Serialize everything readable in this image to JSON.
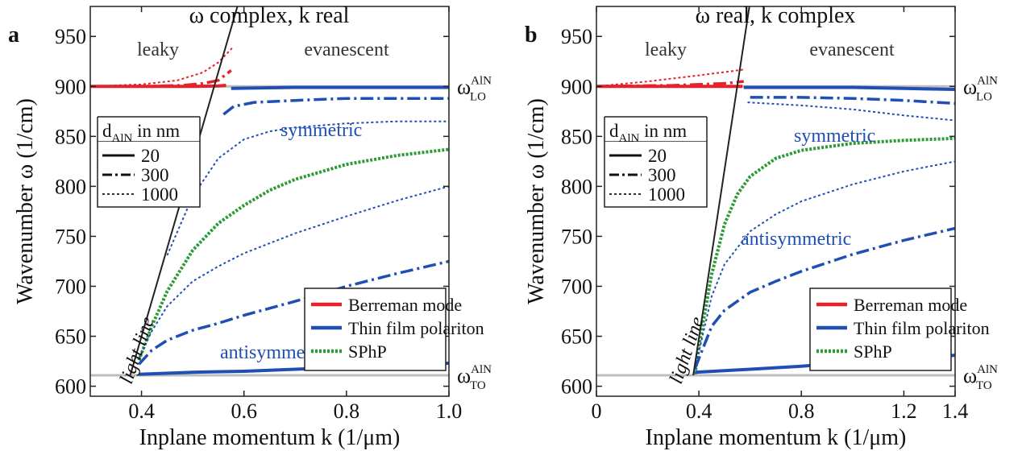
{
  "chart_data": [
    {
      "panel_label": "a",
      "type": "line",
      "title": "ω complex, k real",
      "xlabel": "Inplane momentum k (1/μm)",
      "ylabel": "Wavenumber ω  (1/cm)",
      "xlim": [
        0.3,
        1.0
      ],
      "ylim": [
        590,
        980
      ],
      "xticks": [
        0.4,
        0.6,
        0.8,
        1.0
      ],
      "xtick_labels": [
        "0.4",
        "0.6",
        "0.8",
        "1.0"
      ],
      "yticks": [
        600,
        650,
        700,
        750,
        800,
        850,
        900,
        950
      ],
      "ytick_labels": [
        "600",
        "650",
        "700",
        "750",
        "800",
        "850",
        "900",
        "950"
      ],
      "region_labels": {
        "left": "leaky",
        "right": "evanescent"
      },
      "annotations": {
        "symmetric": "symmetric",
        "antisymmetric": "antisymmetric",
        "light_line": "light line"
      },
      "reference_lines": [
        {
          "label_main": "ω",
          "label_sup": "AlN",
          "label_sub": "LO",
          "y": 900
        },
        {
          "label_main": "ω",
          "label_sup": "AlN",
          "label_sub": "TO",
          "y": 611
        }
      ],
      "light_line": {
        "x": [
          0.378,
          0.59
        ],
        "y": [
          611,
          985
        ]
      },
      "thickness_legend": {
        "title_main": "d",
        "title_sub": "AlN",
        "title_rest": " in nm",
        "entries": [
          {
            "label": "20",
            "style": "solid"
          },
          {
            "label": "300",
            "style": "dashdot"
          },
          {
            "label": "1000",
            "style": "dotted"
          }
        ]
      },
      "mode_legend": [
        {
          "label": "Berreman mode",
          "color": "#e8202a"
        },
        {
          "label": "Thin film polariton",
          "color": "#1f4fb3"
        },
        {
          "label": "SPhP",
          "color": "#2d9a35"
        }
      ],
      "series": [
        {
          "mode": "Berreman mode",
          "style": "solid",
          "color": "#e8202a",
          "x": [
            0.3,
            0.4,
            0.5,
            0.55,
            0.565
          ],
          "y": [
            900,
            900,
            900,
            900.5,
            901
          ]
        },
        {
          "mode": "Berreman mode",
          "style": "dashdot",
          "color": "#e8202a",
          "x": [
            0.3,
            0.4,
            0.48,
            0.52,
            0.55,
            0.575
          ],
          "y": [
            900,
            900,
            901,
            903,
            906,
            916
          ]
        },
        {
          "mode": "Berreman mode",
          "style": "dotted",
          "color": "#e8202a",
          "x": [
            0.3,
            0.4,
            0.47,
            0.52,
            0.55,
            0.58
          ],
          "y": [
            900,
            902,
            906,
            914,
            924,
            940
          ]
        },
        {
          "mode": "Thin film polariton",
          "style": "solid",
          "color": "#1f4fb3",
          "x": [
            0.575,
            0.7,
            0.8,
            1.0
          ],
          "y": [
            898,
            899,
            899,
            899
          ]
        },
        {
          "mode": "Thin film polariton",
          "style": "dashdot",
          "color": "#1f4fb3",
          "x": [
            0.56,
            0.58,
            0.62,
            0.7,
            0.8,
            1.0
          ],
          "y": [
            872,
            880,
            884,
            886,
            888,
            888
          ]
        },
        {
          "mode": "Thin film polariton",
          "style": "dotted",
          "color": "#1f4fb3",
          "x": [
            0.45,
            0.5,
            0.55,
            0.6,
            0.65,
            0.7,
            0.8,
            0.9,
            1.0
          ],
          "y": [
            731,
            790,
            828,
            847,
            855,
            859,
            863,
            865,
            865
          ]
        },
        {
          "mode": "SPhP",
          "style": "dotted",
          "color": "#2d9a35",
          "x": [
            0.395,
            0.42,
            0.45,
            0.5,
            0.55,
            0.6,
            0.65,
            0.7,
            0.8,
            0.9,
            1.0
          ],
          "y": [
            626,
            660,
            695,
            736,
            763,
            781,
            796,
            807,
            822,
            831,
            837
          ]
        },
        {
          "mode": "Thin film polariton",
          "style": "dotted",
          "color": "#1f4fb3",
          "x": [
            0.395,
            0.42,
            0.45,
            0.5,
            0.55,
            0.6,
            0.7,
            0.8,
            0.9,
            1.0
          ],
          "y": [
            628,
            655,
            680,
            705,
            720,
            733,
            753,
            770,
            786,
            800
          ]
        },
        {
          "mode": "Thin film polariton",
          "style": "dashdot",
          "color": "#1f4fb3",
          "x": [
            0.395,
            0.42,
            0.45,
            0.5,
            0.55,
            0.6,
            0.7,
            0.8,
            0.9,
            1.0
          ],
          "y": [
            622,
            636,
            646,
            656,
            663,
            671,
            685,
            700,
            713,
            725
          ]
        },
        {
          "mode": "Thin film polariton",
          "style": "solid",
          "color": "#1f4fb3",
          "x": [
            0.395,
            0.5,
            0.6,
            0.7,
            0.8,
            0.9,
            1.0
          ],
          "y": [
            612,
            614,
            615,
            617,
            619,
            621,
            623
          ]
        }
      ]
    },
    {
      "panel_label": "b",
      "type": "line",
      "title": "ω real, k complex",
      "xlabel": "Inplane momentum k (1/μm)",
      "ylabel": "Wavenumber ω  (1/cm)",
      "xlim": [
        0,
        1.4
      ],
      "ylim": [
        590,
        980
      ],
      "xticks": [
        0,
        0.4,
        0.8,
        1.2,
        1.4
      ],
      "xtick_labels": [
        "0",
        "0.4",
        "0.8",
        "1.2",
        "1.4"
      ],
      "yticks": [
        600,
        650,
        700,
        750,
        800,
        850,
        900,
        950
      ],
      "ytick_labels": [
        "600",
        "650",
        "700",
        "750",
        "800",
        "850",
        "900",
        "950"
      ],
      "region_labels": {
        "left": "leaky",
        "right": "evanescent"
      },
      "annotations": {
        "symmetric": "symmetric",
        "antisymmetric": "antisymmetric",
        "light_line": "light line"
      },
      "reference_lines": [
        {
          "label_main": "ω",
          "label_sup": "AlN",
          "label_sub": "LO",
          "y": 900
        },
        {
          "label_main": "ω",
          "label_sup": "AlN",
          "label_sub": "TO",
          "y": 611
        }
      ],
      "light_line": {
        "x": [
          0.378,
          0.6
        ],
        "y": [
          611,
          985
        ]
      },
      "thickness_legend": {
        "title_main": "d",
        "title_sub": "AlN",
        "title_rest": " in nm",
        "entries": [
          {
            "label": "20",
            "style": "solid"
          },
          {
            "label": "300",
            "style": "dashdot"
          },
          {
            "label": "1000",
            "style": "dotted"
          }
        ]
      },
      "mode_legend": [
        {
          "label": "Berreman mode",
          "color": "#e8202a"
        },
        {
          "label": "Thin film polariton",
          "color": "#1f4fb3"
        },
        {
          "label": "SPhP",
          "color": "#2d9a35"
        }
      ],
      "series": [
        {
          "mode": "Berreman mode",
          "style": "solid",
          "color": "#e8202a",
          "x": [
            0,
            0.3,
            0.5,
            0.57
          ],
          "y": [
            900,
            900,
            900,
            900
          ]
        },
        {
          "mode": "Berreman mode",
          "style": "dashdot",
          "color": "#e8202a",
          "x": [
            0,
            0.3,
            0.5,
            0.575
          ],
          "y": [
            900,
            901,
            903,
            905
          ]
        },
        {
          "mode": "Berreman mode",
          "style": "dotted",
          "color": "#e8202a",
          "x": [
            0,
            0.2,
            0.4,
            0.58
          ],
          "y": [
            900,
            905,
            911,
            917
          ]
        },
        {
          "mode": "Thin film polariton",
          "style": "solid",
          "color": "#1f4fb3",
          "x": [
            0.575,
            0.8,
            1.0,
            1.2,
            1.4
          ],
          "y": [
            899,
            899,
            899,
            898,
            897
          ]
        },
        {
          "mode": "Thin film polariton",
          "style": "dashdot",
          "color": "#1f4fb3",
          "x": [
            0.6,
            0.8,
            1.0,
            1.2,
            1.4
          ],
          "y": [
            889,
            889,
            888,
            886,
            883
          ]
        },
        {
          "mode": "Thin film polariton",
          "style": "dotted",
          "color": "#1f4fb3",
          "x": [
            0.59,
            0.8,
            1.0,
            1.2,
            1.4
          ],
          "y": [
            884,
            881,
            877,
            871,
            866
          ]
        },
        {
          "mode": "SPhP",
          "style": "dotted",
          "color": "#2d9a35",
          "x": [
            0.385,
            0.4,
            0.45,
            0.5,
            0.55,
            0.6,
            0.7,
            0.8,
            1.0,
            1.2,
            1.4
          ],
          "y": [
            612,
            640,
            712,
            762,
            792,
            810,
            828,
            836,
            843,
            846,
            848
          ]
        },
        {
          "mode": "Thin film polariton",
          "style": "dotted",
          "color": "#1f4fb3",
          "x": [
            0.385,
            0.45,
            0.5,
            0.6,
            0.7,
            0.8,
            1.0,
            1.2,
            1.4
          ],
          "y": [
            618,
            690,
            722,
            755,
            772,
            785,
            802,
            815,
            825
          ]
        },
        {
          "mode": "Thin film polariton",
          "style": "dashdot",
          "color": "#1f4fb3",
          "x": [
            0.385,
            0.45,
            0.5,
            0.6,
            0.7,
            0.8,
            1.0,
            1.2,
            1.4
          ],
          "y": [
            618,
            660,
            676,
            694,
            705,
            715,
            732,
            746,
            758
          ]
        },
        {
          "mode": "Thin film polariton",
          "style": "solid",
          "color": "#1f4fb3",
          "x": [
            0.385,
            0.6,
            0.8,
            1.0,
            1.2,
            1.4
          ],
          "y": [
            614,
            617,
            620,
            624,
            628,
            631
          ]
        }
      ]
    }
  ]
}
